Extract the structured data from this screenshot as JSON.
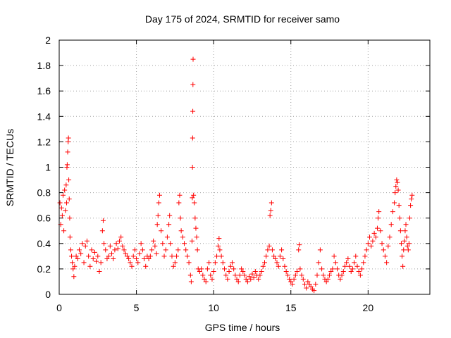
{
  "chart_data": {
    "type": "scatter",
    "title": "Day 175 of 2024, SRMTID for receiver samo",
    "xlabel": "GPS time / hours",
    "ylabel": "SRMTID / TECUs",
    "xlim": [
      0,
      24
    ],
    "ylim": [
      0,
      2
    ],
    "xticks": [
      0,
      5,
      10,
      15,
      20
    ],
    "yticks": [
      0,
      0.2,
      0.4,
      0.6,
      0.8,
      1,
      1.2,
      1.4,
      1.6,
      1.8,
      2
    ],
    "ytick_labels": [
      "0",
      "0.2",
      "0.4",
      "0.6",
      "0.8",
      "1",
      "1.2",
      "1.4",
      "1.6",
      "1.8",
      "2"
    ],
    "grid": true,
    "marker": "plus",
    "color": "#ff0000",
    "series": [
      {
        "name": "samo",
        "points": [
          [
            0.05,
            0.72
          ],
          [
            0.1,
            0.55
          ],
          [
            0.15,
            0.68
          ],
          [
            0.2,
            0.62
          ],
          [
            0.25,
            0.78
          ],
          [
            0.3,
            0.5
          ],
          [
            0.35,
            0.82
          ],
          [
            0.4,
            0.66
          ],
          [
            0.45,
            0.86
          ],
          [
            0.48,
            0.72
          ],
          [
            0.5,
            1.0
          ],
          [
            0.52,
            1.02
          ],
          [
            0.55,
            1.12
          ],
          [
            0.58,
            1.2
          ],
          [
            0.6,
            1.23
          ],
          [
            0.62,
            0.9
          ],
          [
            0.65,
            0.75
          ],
          [
            0.68,
            0.6
          ],
          [
            0.7,
            0.45
          ],
          [
            0.75,
            0.35
          ],
          [
            0.8,
            0.3
          ],
          [
            0.85,
            0.25
          ],
          [
            0.9,
            0.2
          ],
          [
            0.95,
            0.14
          ],
          [
            1.0,
            0.22
          ],
          [
            1.1,
            0.3
          ],
          [
            1.2,
            0.28
          ],
          [
            1.3,
            0.35
          ],
          [
            1.4,
            0.32
          ],
          [
            1.5,
            0.4
          ],
          [
            1.6,
            0.25
          ],
          [
            1.7,
            0.38
          ],
          [
            1.8,
            0.42
          ],
          [
            1.9,
            0.3
          ],
          [
            2.0,
            0.22
          ],
          [
            2.1,
            0.35
          ],
          [
            2.2,
            0.28
          ],
          [
            2.3,
            0.33
          ],
          [
            2.4,
            0.26
          ],
          [
            2.5,
            0.3
          ],
          [
            2.6,
            0.18
          ],
          [
            2.7,
            0.25
          ],
          [
            2.8,
            0.5
          ],
          [
            2.85,
            0.58
          ],
          [
            2.9,
            0.4
          ],
          [
            3.0,
            0.35
          ],
          [
            3.1,
            0.28
          ],
          [
            3.2,
            0.3
          ],
          [
            3.3,
            0.38
          ],
          [
            3.4,
            0.32
          ],
          [
            3.5,
            0.28
          ],
          [
            3.6,
            0.35
          ],
          [
            3.7,
            0.4
          ],
          [
            3.8,
            0.36
          ],
          [
            3.9,
            0.42
          ],
          [
            4.0,
            0.45
          ],
          [
            4.1,
            0.38
          ],
          [
            4.2,
            0.35
          ],
          [
            4.3,
            0.32
          ],
          [
            4.4,
            0.3
          ],
          [
            4.5,
            0.28
          ],
          [
            4.6,
            0.25
          ],
          [
            4.7,
            0.22
          ],
          [
            4.8,
            0.3
          ],
          [
            4.9,
            0.35
          ],
          [
            5.0,
            0.28
          ],
          [
            5.1,
            0.25
          ],
          [
            5.2,
            0.32
          ],
          [
            5.3,
            0.4
          ],
          [
            5.4,
            0.35
          ],
          [
            5.5,
            0.28
          ],
          [
            5.6,
            0.22
          ],
          [
            5.7,
            0.3
          ],
          [
            5.8,
            0.28
          ],
          [
            5.9,
            0.3
          ],
          [
            6.0,
            0.35
          ],
          [
            6.1,
            0.42
          ],
          [
            6.2,
            0.38
          ],
          [
            6.3,
            0.32
          ],
          [
            6.35,
            0.55
          ],
          [
            6.4,
            0.62
          ],
          [
            6.45,
            0.72
          ],
          [
            6.5,
            0.78
          ],
          [
            6.6,
            0.5
          ],
          [
            6.7,
            0.4
          ],
          [
            6.8,
            0.3
          ],
          [
            6.9,
            0.35
          ],
          [
            7.0,
            0.45
          ],
          [
            7.1,
            0.55
          ],
          [
            7.15,
            0.62
          ],
          [
            7.2,
            0.4
          ],
          [
            7.3,
            0.3
          ],
          [
            7.4,
            0.22
          ],
          [
            7.5,
            0.25
          ],
          [
            7.6,
            0.3
          ],
          [
            7.7,
            0.35
          ],
          [
            7.75,
            0.72
          ],
          [
            7.8,
            0.78
          ],
          [
            7.85,
            0.6
          ],
          [
            7.9,
            0.5
          ],
          [
            8.0,
            0.45
          ],
          [
            8.1,
            0.4
          ],
          [
            8.2,
            0.35
          ],
          [
            8.3,
            0.3
          ],
          [
            8.4,
            0.25
          ],
          [
            8.5,
            0.15
          ],
          [
            8.55,
            0.1
          ],
          [
            8.6,
            0.42
          ],
          [
            8.62,
            0.76
          ],
          [
            8.63,
            1.0
          ],
          [
            8.64,
            1.23
          ],
          [
            8.65,
            1.44
          ],
          [
            8.66,
            1.65
          ],
          [
            8.67,
            1.85
          ],
          [
            8.7,
            0.78
          ],
          [
            8.75,
            0.72
          ],
          [
            8.8,
            0.6
          ],
          [
            8.85,
            0.52
          ],
          [
            8.9,
            0.45
          ],
          [
            8.95,
            0.35
          ],
          [
            9.0,
            0.2
          ],
          [
            9.1,
            0.18
          ],
          [
            9.2,
            0.2
          ],
          [
            9.3,
            0.15
          ],
          [
            9.4,
            0.12
          ],
          [
            9.5,
            0.1
          ],
          [
            9.6,
            0.2
          ],
          [
            9.7,
            0.25
          ],
          [
            9.8,
            0.15
          ],
          [
            9.9,
            0.12
          ],
          [
            10.0,
            0.18
          ],
          [
            10.1,
            0.25
          ],
          [
            10.2,
            0.3
          ],
          [
            10.3,
            0.38
          ],
          [
            10.35,
            0.44
          ],
          [
            10.4,
            0.35
          ],
          [
            10.5,
            0.3
          ],
          [
            10.6,
            0.25
          ],
          [
            10.7,
            0.2
          ],
          [
            10.8,
            0.15
          ],
          [
            10.9,
            0.12
          ],
          [
            11.0,
            0.18
          ],
          [
            11.1,
            0.22
          ],
          [
            11.2,
            0.25
          ],
          [
            11.3,
            0.2
          ],
          [
            11.4,
            0.15
          ],
          [
            11.5,
            0.12
          ],
          [
            11.6,
            0.1
          ],
          [
            11.7,
            0.15
          ],
          [
            11.8,
            0.2
          ],
          [
            11.9,
            0.18
          ],
          [
            12.0,
            0.15
          ],
          [
            12.1,
            0.12
          ],
          [
            12.2,
            0.1
          ],
          [
            12.3,
            0.14
          ],
          [
            12.4,
            0.12
          ],
          [
            12.5,
            0.16
          ],
          [
            12.6,
            0.13
          ],
          [
            12.7,
            0.18
          ],
          [
            12.8,
            0.15
          ],
          [
            12.9,
            0.12
          ],
          [
            13.0,
            0.15
          ],
          [
            13.1,
            0.18
          ],
          [
            13.2,
            0.22
          ],
          [
            13.3,
            0.25
          ],
          [
            13.4,
            0.3
          ],
          [
            13.5,
            0.35
          ],
          [
            13.6,
            0.38
          ],
          [
            13.65,
            0.62
          ],
          [
            13.7,
            0.66
          ],
          [
            13.75,
            0.72
          ],
          [
            13.8,
            0.35
          ],
          [
            13.9,
            0.3
          ],
          [
            14.0,
            0.28
          ],
          [
            14.1,
            0.25
          ],
          [
            14.2,
            0.22
          ],
          [
            14.3,
            0.3
          ],
          [
            14.4,
            0.35
          ],
          [
            14.5,
            0.28
          ],
          [
            14.6,
            0.22
          ],
          [
            14.7,
            0.18
          ],
          [
            14.8,
            0.15
          ],
          [
            14.9,
            0.12
          ],
          [
            15.0,
            0.1
          ],
          [
            15.1,
            0.08
          ],
          [
            15.2,
            0.12
          ],
          [
            15.3,
            0.15
          ],
          [
            15.4,
            0.18
          ],
          [
            15.5,
            0.35
          ],
          [
            15.55,
            0.39
          ],
          [
            15.6,
            0.2
          ],
          [
            15.7,
            0.15
          ],
          [
            15.8,
            0.12
          ],
          [
            15.9,
            0.08
          ],
          [
            16.0,
            0.05
          ],
          [
            16.1,
            0.1
          ],
          [
            16.2,
            0.08
          ],
          [
            16.3,
            0.06
          ],
          [
            16.4,
            0.04
          ],
          [
            16.5,
            0.03
          ],
          [
            16.6,
            0.08
          ],
          [
            16.7,
            0.15
          ],
          [
            16.8,
            0.25
          ],
          [
            16.9,
            0.35
          ],
          [
            17.0,
            0.2
          ],
          [
            17.1,
            0.15
          ],
          [
            17.2,
            0.12
          ],
          [
            17.3,
            0.1
          ],
          [
            17.4,
            0.12
          ],
          [
            17.5,
            0.15
          ],
          [
            17.6,
            0.18
          ],
          [
            17.7,
            0.2
          ],
          [
            17.8,
            0.3
          ],
          [
            17.9,
            0.25
          ],
          [
            18.0,
            0.2
          ],
          [
            18.1,
            0.15
          ],
          [
            18.2,
            0.12
          ],
          [
            18.3,
            0.15
          ],
          [
            18.4,
            0.18
          ],
          [
            18.5,
            0.22
          ],
          [
            18.6,
            0.25
          ],
          [
            18.7,
            0.28
          ],
          [
            18.8,
            0.22
          ],
          [
            18.9,
            0.18
          ],
          [
            19.0,
            0.2
          ],
          [
            19.1,
            0.25
          ],
          [
            19.2,
            0.3
          ],
          [
            19.3,
            0.22
          ],
          [
            19.4,
            0.18
          ],
          [
            19.5,
            0.15
          ],
          [
            19.6,
            0.2
          ],
          [
            19.7,
            0.25
          ],
          [
            19.8,
            0.3
          ],
          [
            19.9,
            0.35
          ],
          [
            20.0,
            0.4
          ],
          [
            20.1,
            0.45
          ],
          [
            20.2,
            0.38
          ],
          [
            20.3,
            0.42
          ],
          [
            20.4,
            0.48
          ],
          [
            20.5,
            0.45
          ],
          [
            20.6,
            0.52
          ],
          [
            20.65,
            0.6
          ],
          [
            20.7,
            0.65
          ],
          [
            20.8,
            0.5
          ],
          [
            20.9,
            0.4
          ],
          [
            21.0,
            0.35
          ],
          [
            21.1,
            0.3
          ],
          [
            21.2,
            0.25
          ],
          [
            21.3,
            0.38
          ],
          [
            21.4,
            0.45
          ],
          [
            21.5,
            0.55
          ],
          [
            21.6,
            0.65
          ],
          [
            21.7,
            0.72
          ],
          [
            21.75,
            0.8
          ],
          [
            21.8,
            0.85
          ],
          [
            21.85,
            0.9
          ],
          [
            21.9,
            0.88
          ],
          [
            21.95,
            0.82
          ],
          [
            22.0,
            0.7
          ],
          [
            22.05,
            0.6
          ],
          [
            22.1,
            0.5
          ],
          [
            22.15,
            0.4
          ],
          [
            22.2,
            0.3
          ],
          [
            22.25,
            0.22
          ],
          [
            22.3,
            0.35
          ],
          [
            22.35,
            0.42
          ],
          [
            22.4,
            0.5
          ],
          [
            22.45,
            0.55
          ],
          [
            22.5,
            0.45
          ],
          [
            22.55,
            0.38
          ],
          [
            22.6,
            0.35
          ],
          [
            22.65,
            0.4
          ],
          [
            22.7,
            0.6
          ],
          [
            22.75,
            0.7
          ],
          [
            22.8,
            0.75
          ],
          [
            22.85,
            0.78
          ]
        ]
      }
    ]
  }
}
